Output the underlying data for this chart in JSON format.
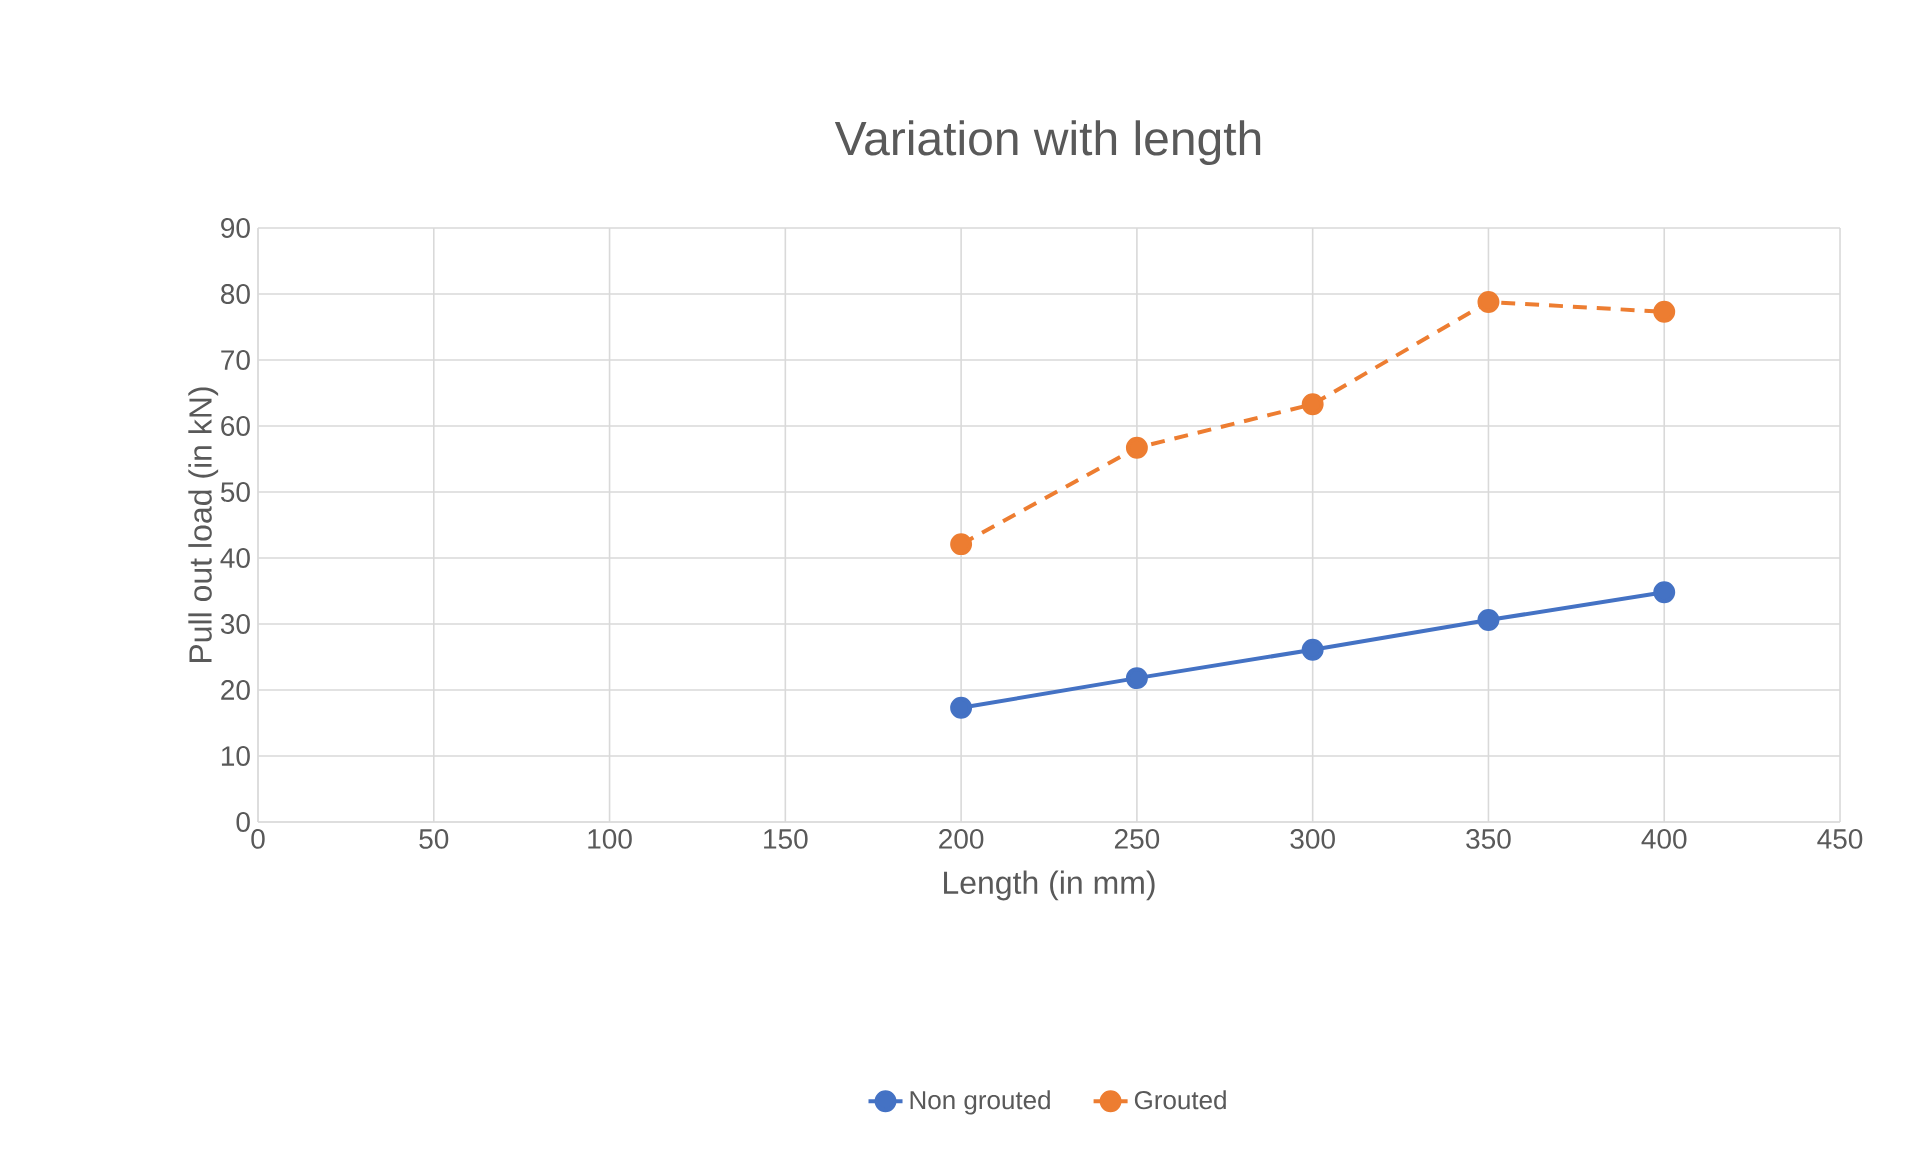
{
  "chart_data": {
    "type": "line",
    "title": "Variation with length",
    "xlabel": "Length (in mm)",
    "ylabel": "Pull out load (in kN)",
    "x": [
      200,
      250,
      300,
      350,
      400
    ],
    "series": [
      {
        "name": "Non grouted",
        "color": "#4472c4",
        "line_style": "solid",
        "values": [
          17.3,
          21.8,
          26.1,
          30.6,
          34.8
        ]
      },
      {
        "name": "Grouted",
        "color": "#ed7d31",
        "line_style": "dashed",
        "values": [
          42.1,
          56.7,
          63.3,
          78.8,
          77.3
        ]
      }
    ],
    "xlim": [
      0,
      450
    ],
    "xticks": [
      0,
      50,
      100,
      150,
      200,
      250,
      300,
      350,
      400,
      450
    ],
    "ylim": [
      0,
      90
    ],
    "yticks": [
      0,
      10,
      20,
      30,
      40,
      50,
      60,
      70,
      80,
      90
    ],
    "grid": true,
    "legend": "bottom",
    "marker": "circle"
  }
}
